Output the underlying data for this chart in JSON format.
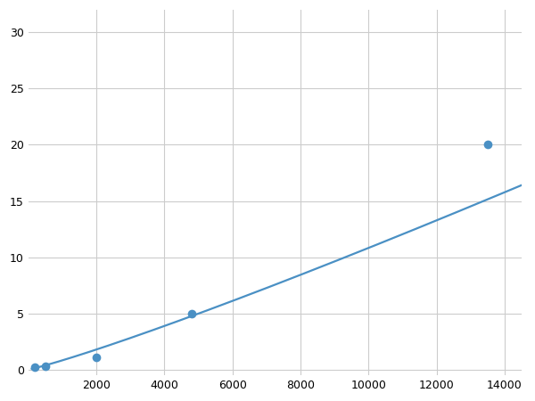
{
  "x_points": [
    200,
    500,
    2000,
    4800,
    13500
  ],
  "y_points": [
    0.2,
    0.3,
    1.1,
    5.0,
    20.0
  ],
  "line_color": "#4a90c4",
  "marker_color": "#4a90c4",
  "marker_size": 7,
  "line_width": 1.6,
  "xlim": [
    0,
    14500
  ],
  "ylim": [
    -0.5,
    32
  ],
  "xticks": [
    2000,
    4000,
    6000,
    8000,
    10000,
    12000,
    14000
  ],
  "yticks": [
    0,
    5,
    10,
    15,
    20,
    25,
    30
  ],
  "grid_color": "#cccccc",
  "background_color": "#ffffff",
  "tick_fontsize": 9
}
